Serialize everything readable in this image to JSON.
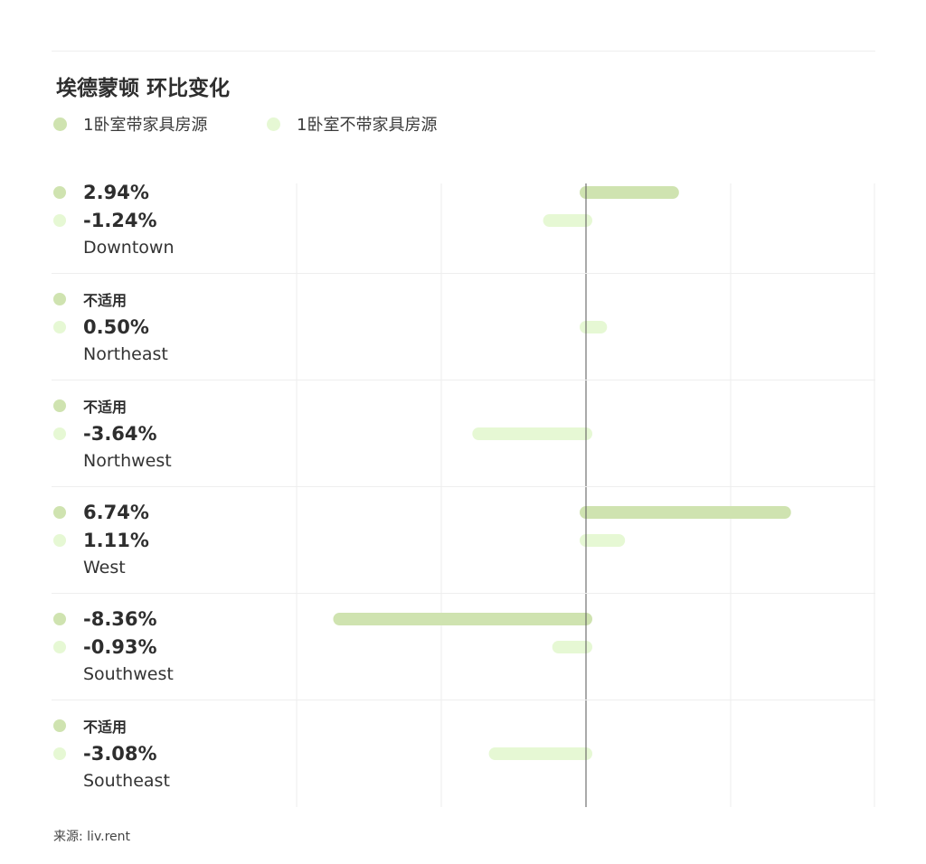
{
  "chart_data": {
    "type": "bar",
    "title": "埃德蒙顿 环比变化",
    "orientation": "horizontal",
    "legend_placement": "top-left",
    "grid": true,
    "xlim": [
      -10.5,
      10
    ],
    "categories": [
      "Downtown",
      "Northeast",
      "Northwest",
      "West",
      "Southwest",
      "Southeast"
    ],
    "series": [
      {
        "name": "1卧室带家具房源",
        "color": "#cfe3b0",
        "values": [
          2.94,
          null,
          null,
          6.74,
          -8.36,
          null
        ],
        "labels": [
          "2.94%",
          "不适用",
          "不适用",
          "6.74%",
          "-8.36%",
          "不适用"
        ]
      },
      {
        "name": "1卧室不带家具房源",
        "color": "#e6f8d4",
        "values": [
          -1.24,
          0.5,
          -3.64,
          1.11,
          -0.93,
          -3.08
        ],
        "labels": [
          "-1.24%",
          "0.50%",
          "-3.64%",
          "1.11%",
          "-0.93%",
          "-3.08%"
        ]
      }
    ]
  },
  "footer": {
    "source": "来源: liv.rent"
  },
  "colors": {
    "zero_line": "#555555",
    "grid": "#eeeeee",
    "text": "#333333"
  }
}
